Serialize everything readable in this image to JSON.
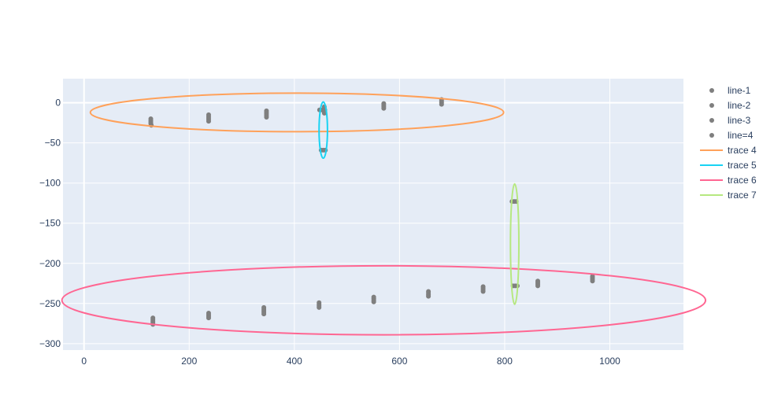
{
  "chart_data": {
    "type": "scatter",
    "title": "",
    "xlabel": "",
    "ylabel": "",
    "xlim": [
      -40,
      1140
    ],
    "ylim": [
      -308,
      30
    ],
    "x_ticks": [
      0,
      200,
      400,
      600,
      800,
      1000
    ],
    "y_ticks": [
      0,
      -50,
      -100,
      -150,
      -200,
      -250,
      -300
    ],
    "x_tick_labels": [
      "0",
      "200",
      "400",
      "600",
      "800",
      "1000"
    ],
    "y_tick_labels": [
      "0",
      "−50",
      "−100",
      "−150",
      "−200",
      "−250",
      "−300"
    ],
    "grid": true,
    "legend_position": "top-right",
    "marker_color": "#7f7f7f",
    "series": [
      {
        "name": "line-1",
        "mode": "markers",
        "points": [
          [
            127,
            -20
          ],
          [
            127,
            -22
          ],
          [
            127,
            -24
          ],
          [
            127,
            -26
          ],
          [
            128,
            -28
          ],
          [
            237,
            -15
          ],
          [
            237,
            -17
          ],
          [
            237,
            -19
          ],
          [
            237,
            -21
          ],
          [
            237,
            -23
          ],
          [
            347,
            -10
          ],
          [
            347,
            -12
          ],
          [
            347,
            -14
          ],
          [
            347,
            -16
          ],
          [
            347,
            -18
          ],
          [
            457,
            -5
          ],
          [
            457,
            -7
          ],
          [
            457,
            -9
          ],
          [
            457,
            -11
          ],
          [
            457,
            -13
          ]
        ]
      },
      {
        "name": "line-2",
        "mode": "markers",
        "points": [
          [
            570,
            -1
          ],
          [
            570,
            -3
          ],
          [
            570,
            -5
          ],
          [
            570,
            -7
          ],
          [
            680,
            4
          ],
          [
            680,
            2
          ],
          [
            680,
            0
          ],
          [
            680,
            -2
          ],
          [
            448,
            -9
          ],
          [
            452,
            -9
          ],
          [
            458,
            -9
          ]
        ]
      },
      {
        "name": "line-3",
        "mode": "markers",
        "points": [
          [
            131,
            -268
          ],
          [
            131,
            -270
          ],
          [
            131,
            -272
          ],
          [
            131,
            -274
          ],
          [
            131,
            -276
          ],
          [
            237,
            -262
          ],
          [
            237,
            -264
          ],
          [
            237,
            -266
          ],
          [
            237,
            -268
          ],
          [
            342,
            -255
          ],
          [
            342,
            -257
          ],
          [
            342,
            -259
          ],
          [
            342,
            -261
          ],
          [
            342,
            -263
          ],
          [
            447,
            -249
          ],
          [
            447,
            -251
          ],
          [
            447,
            -253
          ],
          [
            447,
            -255
          ],
          [
            551,
            -242
          ],
          [
            551,
            -244
          ],
          [
            551,
            -246
          ],
          [
            551,
            -248
          ],
          [
            655,
            -235
          ],
          [
            655,
            -237
          ],
          [
            655,
            -239
          ],
          [
            655,
            -241
          ],
          [
            759,
            -229
          ],
          [
            759,
            -231
          ],
          [
            759,
            -233
          ],
          [
            759,
            -235
          ],
          [
            816,
            -228
          ],
          [
            820,
            -228
          ],
          [
            824,
            -228
          ]
        ]
      },
      {
        "name": "line=4",
        "mode": "markers",
        "points": [
          [
            451,
            -59
          ],
          [
            455,
            -59
          ],
          [
            459,
            -59
          ],
          [
            814,
            -123
          ],
          [
            818,
            -123
          ],
          [
            822,
            -123
          ],
          [
            863,
            -222
          ],
          [
            863,
            -224
          ],
          [
            863,
            -226
          ],
          [
            863,
            -228
          ],
          [
            967,
            -216
          ],
          [
            967,
            -218
          ],
          [
            967,
            -220
          ],
          [
            967,
            -222
          ]
        ]
      },
      {
        "name": "trace 4",
        "mode": "ellipse",
        "color": "#ffa15a",
        "center": [
          405,
          -12
        ],
        "radii": [
          393,
          24
        ]
      },
      {
        "name": "trace 5",
        "mode": "ellipse",
        "color": "#19d3f3",
        "center": [
          455,
          -34
        ],
        "radii": [
          8,
          35
        ]
      },
      {
        "name": "trace 6",
        "mode": "ellipse",
        "color": "#ff6692",
        "center": [
          570,
          -246
        ],
        "radii": [
          612,
          43
        ]
      },
      {
        "name": "trace 7",
        "mode": "ellipse",
        "color": "#b6e880",
        "center": [
          819,
          -176
        ],
        "radii": [
          8,
          75
        ]
      }
    ]
  }
}
